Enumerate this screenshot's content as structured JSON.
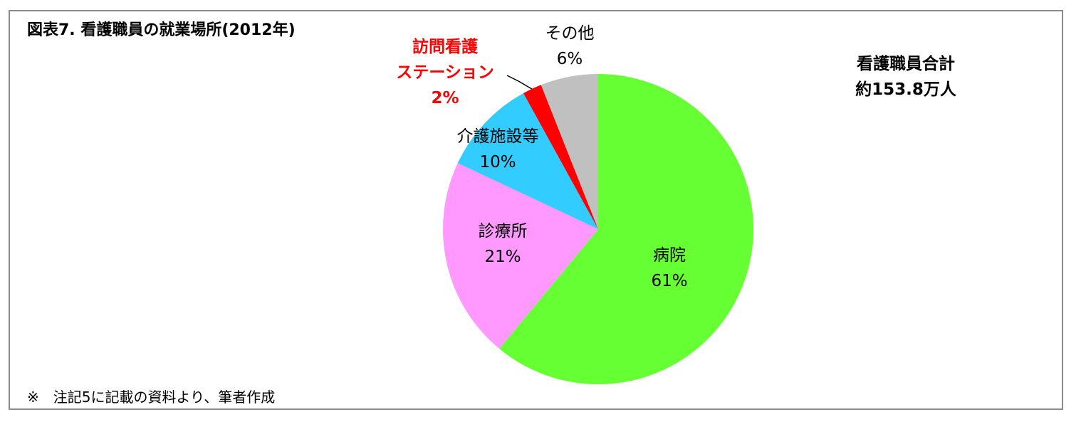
{
  "chart_data": {
    "type": "pie",
    "title": "図表7. 看護職員の就業場所(2012年)",
    "categories": [
      "病院",
      "診療所",
      "介護施設等",
      "訪問看護\nステーション",
      "その他"
    ],
    "values": [
      61,
      21,
      10,
      2,
      6
    ],
    "value_labels": [
      "61%",
      "21%",
      "10%",
      "2%",
      "6%"
    ],
    "colors": [
      "#66ff33",
      "#ff99ff",
      "#33ccff",
      "#ff0000",
      "#c0c0c0"
    ],
    "annotation": "看護職員合計\n約153.8万人",
    "note": "※　注記5に記載の資料より、筆者作成"
  }
}
